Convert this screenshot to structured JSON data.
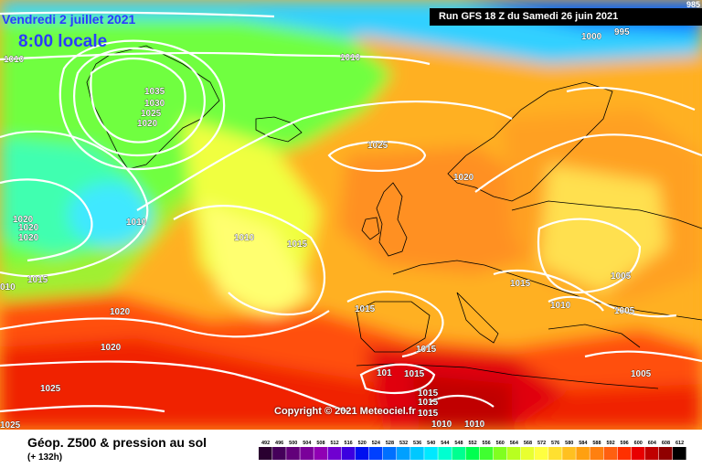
{
  "header": {
    "date_label": "Vendredi 2 juillet 2021",
    "time_label": "8:00 locale",
    "run_label": "Run GFS 18 Z du Samedi 26 juin 2021",
    "corner_value": "985"
  },
  "copyright": "Copyright © 2021 Meteociel.fr",
  "footer": {
    "title": "Géop. Z500 & pression au sol",
    "subtitle": "(+ 132h)"
  },
  "legend": {
    "values": [
      "492",
      "496",
      "500",
      "504",
      "508",
      "512",
      "516",
      "520",
      "524",
      "528",
      "532",
      "536",
      "540",
      "544",
      "548",
      "552",
      "556",
      "560",
      "564",
      "568",
      "572",
      "576",
      "580",
      "584",
      "588",
      "592",
      "596",
      "600",
      "604",
      "608",
      "612"
    ],
    "colors": [
      "#2a0030",
      "#45005a",
      "#62007a",
      "#7a009a",
      "#9000b4",
      "#7000d0",
      "#3c00e0",
      "#0010f0",
      "#0040ff",
      "#0070ff",
      "#00a0ff",
      "#00c8ff",
      "#00e8ff",
      "#00ffd0",
      "#00ff90",
      "#00ff50",
      "#40ff30",
      "#80ff20",
      "#b8ff20",
      "#e8ff30",
      "#ffff40",
      "#ffe030",
      "#ffc020",
      "#ffa010",
      "#ff8010",
      "#ff6010",
      "#ff3000",
      "#e80000",
      "#c00000",
      "#900000",
      "#000000"
    ]
  },
  "isobars": [
    {
      "label": "1010",
      "id": "iso-1010-a"
    },
    {
      "label": "1010",
      "id": "iso-1010-b"
    },
    {
      "label": "1035",
      "id": "iso-1035"
    },
    {
      "label": "1030",
      "id": "iso-1030"
    },
    {
      "label": "1025",
      "id": "iso-1025-a"
    },
    {
      "label": "1020",
      "id": "iso-1020-a"
    },
    {
      "label": "1025",
      "id": "iso-1025-b"
    },
    {
      "label": "1020",
      "id": "iso-1020-b"
    },
    {
      "label": "1000",
      "id": "iso-1000"
    },
    {
      "label": "995",
      "id": "iso-995"
    },
    {
      "label": "1010",
      "id": "iso-1010-c"
    },
    {
      "label": "1020",
      "id": "iso-1020-c"
    },
    {
      "label": "1020",
      "id": "iso-1020-d"
    },
    {
      "label": "1020",
      "id": "iso-1020-e"
    },
    {
      "label": "1010",
      "id": "iso-1010-d"
    },
    {
      "label": "1015",
      "id": "iso-1015-a"
    },
    {
      "label": "1015",
      "id": "iso-1015-b"
    },
    {
      "label": "010",
      "id": "iso-010"
    },
    {
      "label": "1020",
      "id": "iso-1020-f"
    },
    {
      "label": "1020",
      "id": "iso-1020-g"
    },
    {
      "label": "1015",
      "id": "iso-1015-c"
    },
    {
      "label": "1015",
      "id": "iso-1015-d"
    },
    {
      "label": "1015",
      "id": "iso-1015-e"
    },
    {
      "label": "1010",
      "id": "iso-1010-e"
    },
    {
      "label": "1005",
      "id": "iso-1005-a"
    },
    {
      "label": "1005",
      "id": "iso-1005-b"
    },
    {
      "label": "1005",
      "id": "iso-1005-c"
    },
    {
      "label": "1015",
      "id": "iso-1015-f"
    },
    {
      "label": "101",
      "id": "iso-101"
    },
    {
      "label": "1015",
      "id": "iso-1015-g"
    },
    {
      "label": "1015",
      "id": "iso-1015-h"
    },
    {
      "label": "1015",
      "id": "iso-1015-i"
    },
    {
      "label": "1025",
      "id": "iso-1025-c"
    },
    {
      "label": "1025",
      "id": "iso-1025-d"
    },
    {
      "label": "1010",
      "id": "iso-1010-f"
    },
    {
      "label": "1010",
      "id": "iso-1010-g"
    }
  ]
}
